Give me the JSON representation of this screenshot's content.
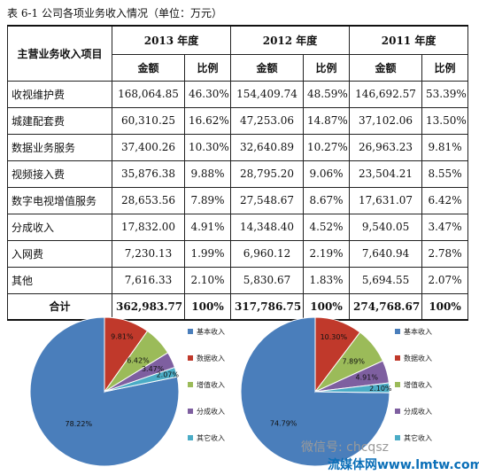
{
  "caption": "表 6-1 公司各项业务收入情况（单位：万元）",
  "table": {
    "row_header": "主营业务收入项目",
    "years": [
      "2013 年度",
      "2012 年度",
      "2011 年度"
    ],
    "sub_headers": [
      "金额",
      "比例"
    ],
    "rows": [
      {
        "item": "收视维护费",
        "cells": [
          "168,064.85",
          "46.30%",
          "154,409.74",
          "48.59%",
          "146,692.57",
          "53.39%"
        ]
      },
      {
        "item": "城建配套费",
        "cells": [
          "60,310.25",
          "16.62%",
          "47,253.06",
          "14.87%",
          "37,102.06",
          "13.50%"
        ]
      },
      {
        "item": "数据业务服务",
        "cells": [
          "37,400.26",
          "10.30%",
          "32,640.89",
          "10.27%",
          "26,963.23",
          "9.81%"
        ]
      },
      {
        "item": "视频接入费",
        "cells": [
          "35,876.38",
          "9.88%",
          "28,795.20",
          "9.06%",
          "23,504.21",
          "8.55%"
        ]
      },
      {
        "item": "数字电视增值服务",
        "cells": [
          "28,653.56",
          "7.89%",
          "27,548.67",
          "8.67%",
          "17,631.07",
          "6.42%"
        ]
      },
      {
        "item": "分成收入",
        "cells": [
          "17,832.00",
          "4.91%",
          "14,348.40",
          "4.52%",
          "9,540.05",
          "3.47%"
        ]
      },
      {
        "item": "入网费",
        "cells": [
          "7,230.13",
          "1.99%",
          "6,960.12",
          "2.19%",
          "7,640.94",
          "2.78%"
        ]
      },
      {
        "item": "其他",
        "cells": [
          "7,616.33",
          "2.10%",
          "5,830.67",
          "1.83%",
          "5,694.55",
          "2.07%"
        ]
      }
    ],
    "total": {
      "item": "合计",
      "cells": [
        "362,983.77",
        "100%",
        "317,786.75",
        "100%",
        "274,768.67",
        "100%"
      ]
    }
  },
  "chart_data": [
    {
      "type": "pie",
      "categories": [
        "基本收入",
        "数据收入",
        "增值收入",
        "分成收入",
        "其它收入"
      ],
      "values": [
        78.22,
        9.81,
        6.42,
        3.47,
        2.07
      ],
      "labels": [
        "78.22%",
        "9.81%",
        "6.42%",
        "3.47%",
        "2.07%"
      ],
      "colors": [
        "#4a7ebb",
        "#c0392b",
        "#9bbb59",
        "#7e5fa0",
        "#4bacc6"
      ],
      "legend": "right"
    },
    {
      "type": "pie",
      "categories": [
        "基本收入",
        "数据收入",
        "增值收入",
        "分成收入",
        "其它收入"
      ],
      "values": [
        74.79,
        10.3,
        7.89,
        4.91,
        2.1
      ],
      "labels": [
        "74.79%",
        "10.30%",
        "7.89%",
        "4.91%",
        "2.10%"
      ],
      "colors": [
        "#4a7ebb",
        "#c0392b",
        "#9bbb59",
        "#7e5fa0",
        "#4bacc6"
      ],
      "legend": "right"
    }
  ],
  "watermark": {
    "line1": "微信号: chcqsz",
    "line2": "流媒体网www.lmtw.com"
  }
}
